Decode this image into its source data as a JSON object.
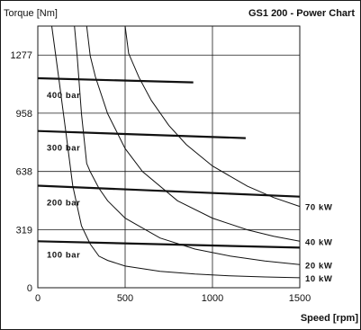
{
  "chart_data": {
    "type": "line",
    "title": "GS1 200 - Power Chart",
    "xlabel": "Speed [rpm]",
    "ylabel": "Torque [Nm]",
    "xlim": [
      0,
      1500
    ],
    "ylim": [
      0,
      1436
    ],
    "x_ticks": [
      0,
      500,
      1000,
      1500
    ],
    "y_ticks": [
      0,
      319,
      638,
      958,
      1277
    ],
    "grid": true,
    "pressure_lines": [
      {
        "name": "400 bar",
        "points": [
          [
            0,
            1150
          ],
          [
            890,
            1127
          ]
        ]
      },
      {
        "name": "300 bar",
        "points": [
          [
            0,
            860
          ],
          [
            1190,
            821
          ]
        ]
      },
      {
        "name": "200 bar",
        "points": [
          [
            0,
            560
          ],
          [
            1500,
            500
          ]
        ]
      },
      {
        "name": "100 bar",
        "points": [
          [
            0,
            255
          ],
          [
            1500,
            220
          ]
        ]
      }
    ],
    "power_curves": [
      {
        "name": "70 kW",
        "points": [
          [
            500,
            1436
          ],
          [
            520,
            1286
          ],
          [
            580,
            1153
          ],
          [
            650,
            1028
          ],
          [
            750,
            891
          ],
          [
            850,
            786
          ],
          [
            1000,
            668
          ],
          [
            1200,
            557
          ],
          [
            1350,
            495
          ],
          [
            1500,
            446
          ]
        ]
      },
      {
        "name": "40 kW",
        "points": [
          [
            280,
            1436
          ],
          [
            300,
            1273
          ],
          [
            330,
            1157
          ],
          [
            400,
            955
          ],
          [
            500,
            764
          ],
          [
            600,
            637
          ],
          [
            800,
            477
          ],
          [
            1000,
            382
          ],
          [
            1200,
            318
          ],
          [
            1350,
            283
          ],
          [
            1500,
            255
          ]
        ]
      },
      {
        "name": "20 kW",
        "points": [
          [
            210,
            1436
          ],
          [
            225,
            1273
          ],
          [
            250,
            955
          ],
          [
            280,
            682
          ],
          [
            300,
            637
          ],
          [
            350,
            546
          ],
          [
            400,
            477
          ],
          [
            500,
            382
          ],
          [
            700,
            273
          ],
          [
            900,
            212
          ],
          [
            1100,
            174
          ],
          [
            1300,
            147
          ],
          [
            1500,
            127
          ]
        ]
      },
      {
        "name": "10 kW",
        "points": [
          [
            80,
            1436
          ],
          [
            120,
            1150
          ],
          [
            160,
            860
          ],
          [
            200,
            560
          ],
          [
            250,
            340
          ],
          [
            300,
            240
          ],
          [
            350,
            173
          ],
          [
            400,
            150
          ],
          [
            500,
            119
          ],
          [
            700,
            90
          ],
          [
            900,
            75
          ],
          [
            1100,
            65
          ],
          [
            1300,
            59
          ],
          [
            1500,
            55
          ]
        ]
      }
    ]
  }
}
